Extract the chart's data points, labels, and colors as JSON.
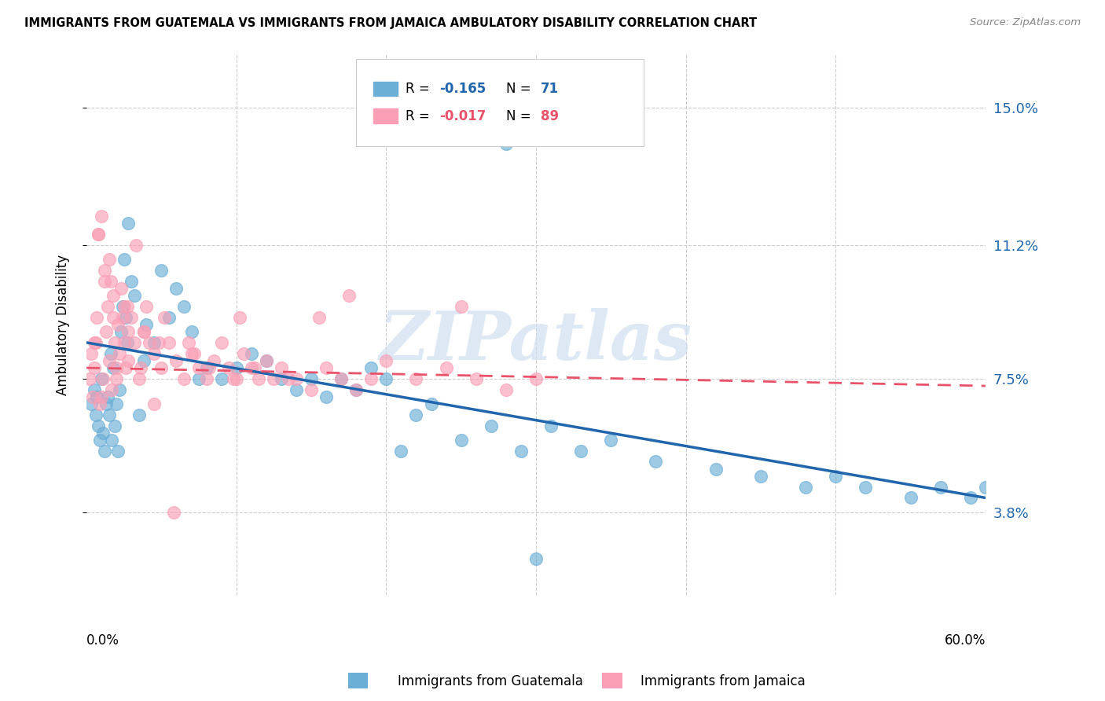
{
  "title": "IMMIGRANTS FROM GUATEMALA VS IMMIGRANTS FROM JAMAICA AMBULATORY DISABILITY CORRELATION CHART",
  "source": "Source: ZipAtlas.com",
  "ylabel": "Ambulatory Disability",
  "yticks": [
    3.8,
    7.5,
    11.2,
    15.0
  ],
  "ytick_labels": [
    "3.8%",
    "7.5%",
    "11.2%",
    "15.0%"
  ],
  "xmin": 0.0,
  "xmax": 60.0,
  "ymin": 1.5,
  "ymax": 16.5,
  "legend_r1": "R = ",
  "legend_rv1": "-0.165",
  "legend_n1": "N = ",
  "legend_nv1": "71",
  "legend_r2": "R = ",
  "legend_rv2": "-0.017",
  "legend_n2": "N = ",
  "legend_nv2": "89",
  "color_blue": "#6baed6",
  "color_pink": "#fa9fb5",
  "color_blue_line": "#2166ac",
  "color_pink_line": "#e8526a",
  "label1": "Immigrants from Guatemala",
  "label2": "Immigrants from Jamaica",
  "watermark": "ZIPatlas",
  "guatemala_x": [
    0.3,
    0.5,
    0.6,
    0.7,
    0.8,
    0.9,
    1.0,
    1.1,
    1.2,
    1.3,
    1.4,
    1.5,
    1.6,
    1.7,
    1.8,
    1.9,
    2.0,
    2.1,
    2.2,
    2.3,
    2.4,
    2.5,
    2.6,
    2.7,
    2.8,
    3.0,
    3.2,
    3.5,
    3.8,
    4.0,
    4.5,
    5.0,
    5.5,
    6.0,
    6.5,
    7.0,
    7.5,
    8.0,
    9.0,
    10.0,
    11.0,
    12.0,
    13.0,
    14.0,
    15.0,
    16.0,
    17.0,
    18.0,
    19.0,
    20.0,
    21.0,
    22.0,
    23.0,
    25.0,
    27.0,
    29.0,
    31.0,
    33.0,
    35.0,
    38.0,
    42.0,
    45.0,
    48.0,
    50.0,
    52.0,
    55.0,
    57.0,
    59.0,
    60.0,
    28.0,
    30.0
  ],
  "guatemala_y": [
    6.8,
    7.2,
    6.5,
    7.0,
    6.2,
    5.8,
    7.5,
    6.0,
    5.5,
    6.8,
    7.0,
    6.5,
    8.2,
    5.8,
    7.8,
    6.2,
    6.8,
    5.5,
    7.2,
    8.8,
    9.5,
    10.8,
    9.2,
    8.5,
    11.8,
    10.2,
    9.8,
    6.5,
    8.0,
    9.0,
    8.5,
    10.5,
    9.2,
    10.0,
    9.5,
    8.8,
    7.5,
    7.8,
    7.5,
    7.8,
    8.2,
    8.0,
    7.5,
    7.2,
    7.5,
    7.0,
    7.5,
    7.2,
    7.8,
    7.5,
    5.5,
    6.5,
    6.8,
    5.8,
    6.2,
    5.5,
    6.2,
    5.5,
    5.8,
    5.2,
    5.0,
    4.8,
    4.5,
    4.8,
    4.5,
    4.2,
    4.5,
    4.2,
    4.5,
    14.0,
    2.5
  ],
  "jamaica_x": [
    0.2,
    0.3,
    0.4,
    0.5,
    0.6,
    0.7,
    0.8,
    0.9,
    1.0,
    1.1,
    1.2,
    1.3,
    1.4,
    1.5,
    1.6,
    1.7,
    1.8,
    1.9,
    2.0,
    2.1,
    2.2,
    2.3,
    2.4,
    2.5,
    2.6,
    2.7,
    2.8,
    3.0,
    3.2,
    3.5,
    3.8,
    4.0,
    4.5,
    5.0,
    5.5,
    6.0,
    6.5,
    7.0,
    7.5,
    8.0,
    8.5,
    9.0,
    9.5,
    10.0,
    10.5,
    11.0,
    11.5,
    12.0,
    12.5,
    13.0,
    14.0,
    15.0,
    16.0,
    17.0,
    18.0,
    19.0,
    20.0,
    22.0,
    24.0,
    26.0,
    28.0,
    30.0,
    25.0,
    17.5,
    10.2,
    3.3,
    4.8,
    1.5,
    2.5,
    3.8,
    5.2,
    6.8,
    8.2,
    7.2,
    9.8,
    11.2,
    13.5,
    15.5,
    1.0,
    2.0,
    4.5,
    1.8,
    1.2,
    0.8,
    0.5,
    2.8,
    3.6,
    4.2,
    5.8
  ],
  "jamaica_y": [
    7.5,
    8.2,
    7.0,
    7.8,
    8.5,
    9.2,
    11.5,
    6.8,
    12.0,
    7.5,
    10.5,
    8.8,
    9.5,
    8.0,
    10.2,
    7.2,
    9.8,
    8.5,
    7.8,
    9.0,
    8.2,
    10.0,
    9.2,
    8.5,
    7.8,
    9.5,
    8.8,
    9.2,
    8.5,
    7.5,
    8.8,
    9.5,
    8.2,
    7.8,
    8.5,
    8.0,
    7.5,
    8.2,
    7.8,
    7.5,
    8.0,
    8.5,
    7.8,
    7.5,
    8.2,
    7.8,
    7.5,
    8.0,
    7.5,
    7.8,
    7.5,
    7.2,
    7.8,
    7.5,
    7.2,
    7.5,
    8.0,
    7.5,
    7.8,
    7.5,
    7.2,
    7.5,
    9.5,
    9.8,
    9.2,
    11.2,
    8.5,
    10.8,
    9.5,
    8.8,
    9.2,
    8.5,
    7.8,
    8.2,
    7.5,
    7.8,
    7.5,
    9.2,
    7.0,
    7.5,
    6.8,
    9.2,
    10.2,
    11.5,
    8.5,
    8.0,
    7.8,
    8.5,
    3.8
  ]
}
